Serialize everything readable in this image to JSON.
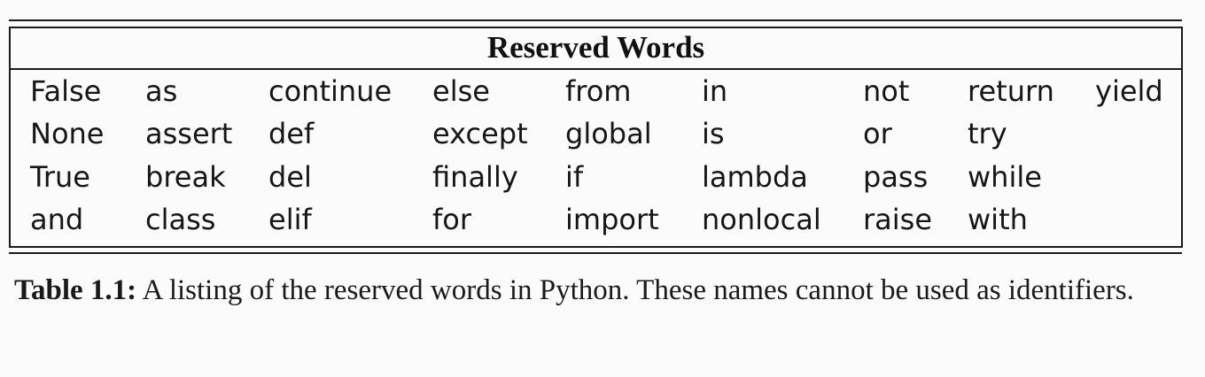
{
  "table": {
    "title": "Reserved Words",
    "columns": [
      [
        "False",
        "None",
        "True",
        "and"
      ],
      [
        "as",
        "assert",
        "break",
        "class"
      ],
      [
        "continue",
        "def",
        "del",
        "elif"
      ],
      [
        "else",
        "except",
        "finally",
        "for"
      ],
      [
        "from",
        "global",
        "if",
        "import"
      ],
      [
        "in",
        "is",
        "lambda",
        "nonlocal"
      ],
      [
        "not",
        "or",
        "pass",
        "raise"
      ],
      [
        "return",
        "try",
        "while",
        "with"
      ],
      [
        "yield",
        "",
        "",
        ""
      ]
    ]
  },
  "caption": {
    "label": "Table 1.1:",
    "text": " A listing of the reserved words in Python. These names cannot be used as identifiers."
  }
}
